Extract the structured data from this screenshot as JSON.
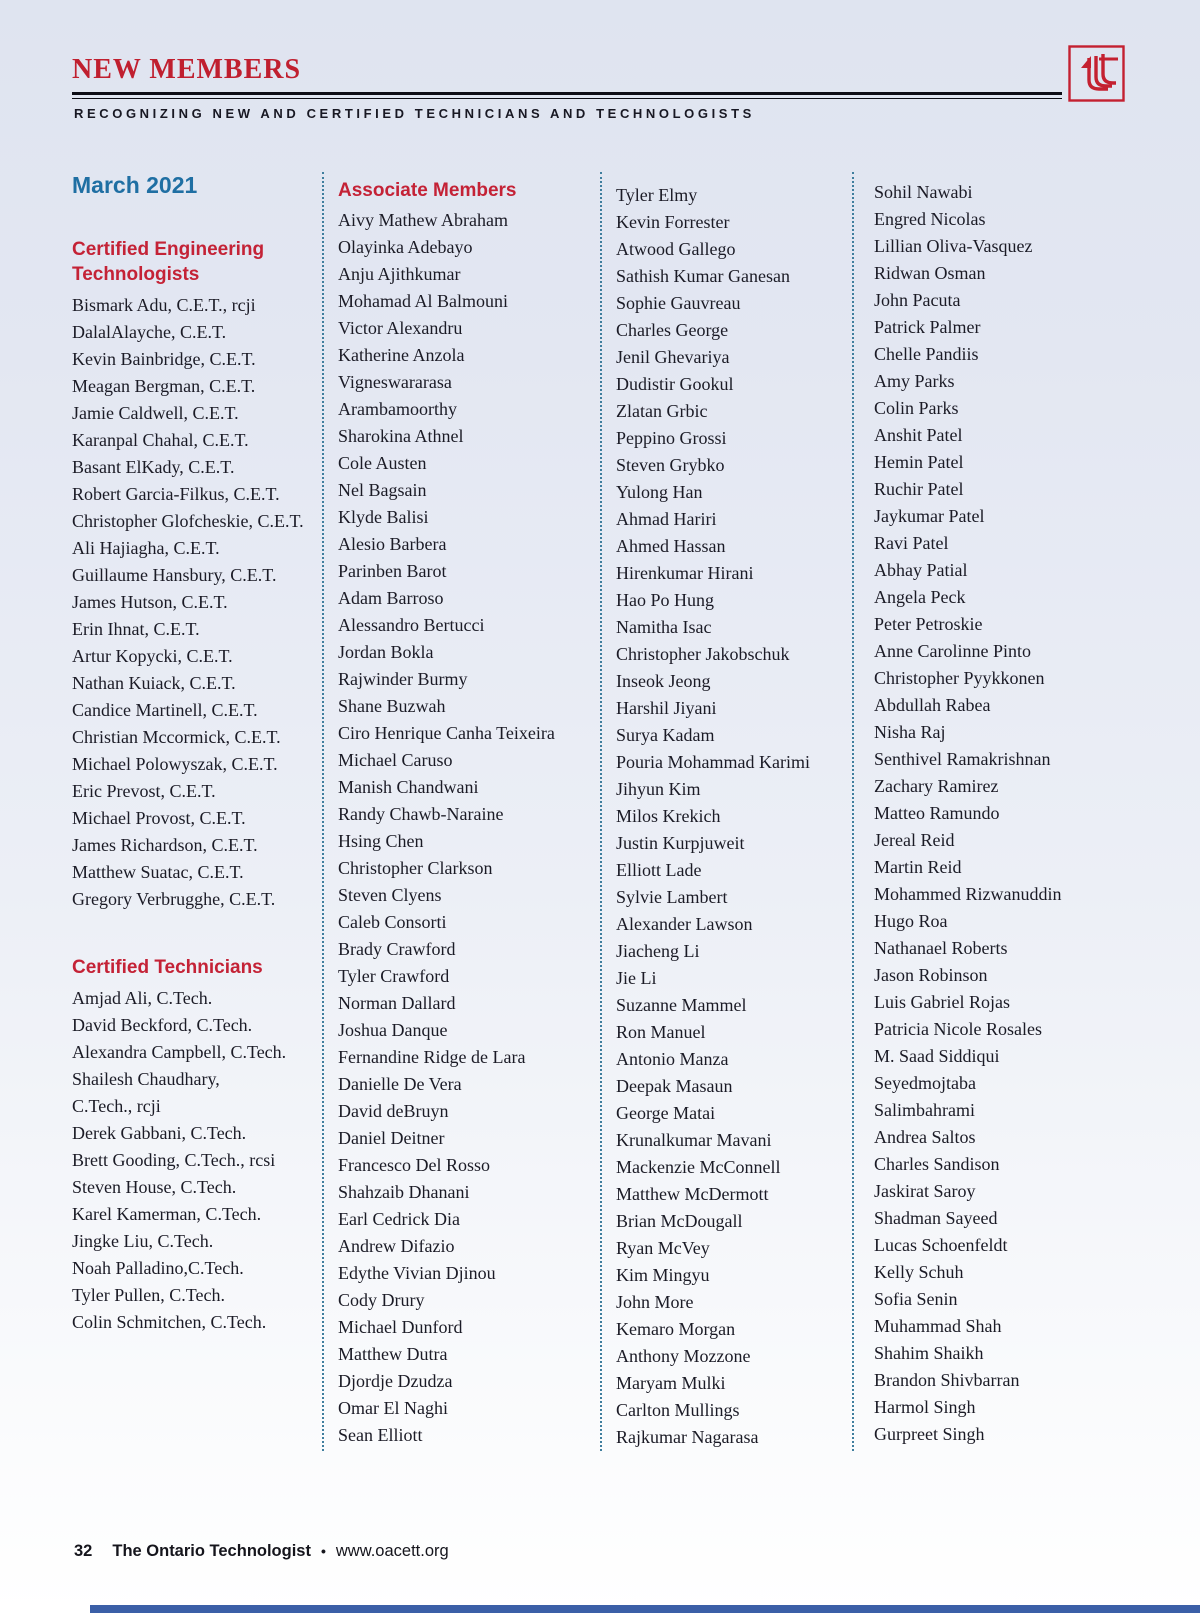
{
  "page": {
    "title": "NEW MEMBERS",
    "subtitle": "RECOGNIZING NEW AND CERTIFIED TECHNICIANS AND TECHNOLOGISTS",
    "issue_date": "March 2021"
  },
  "colors": {
    "accent_red": "#c42236",
    "heading_blue": "#1f6fa3",
    "text_dark": "#1b1b26",
    "separator_blue": "#3f7e9e",
    "bottom_bar_blue": "#3b5fa7"
  },
  "sections": {
    "cet": {
      "heading": "Certified Engineering Technologists",
      "members": [
        "Bismark Adu, C.E.T., rcji",
        "DalalAlayche, C.E.T.",
        "Kevin Bainbridge, C.E.T.",
        "Meagan Bergman, C.E.T.",
        "Jamie Caldwell, C.E.T.",
        "Karanpal Chahal, C.E.T.",
        "Basant ElKady, C.E.T.",
        "Robert Garcia-Filkus, C.E.T.",
        "Christopher Glofcheskie, C.E.T.",
        "Ali Hajiagha, C.E.T.",
        "Guillaume Hansbury, C.E.T.",
        "James Hutson, C.E.T.",
        "Erin Ihnat, C.E.T.",
        "Artur Kopycki, C.E.T.",
        "Nathan Kuiack, C.E.T.",
        "Candice Martinell, C.E.T.",
        "Christian Mccormick, C.E.T.",
        "Michael Polowyszak, C.E.T.",
        "Eric Prevost, C.E.T.",
        "Michael Provost, C.E.T.",
        "James Richardson, C.E.T.",
        "Matthew Suatac, C.E.T.",
        "Gregory Verbrugghe, C.E.T."
      ]
    },
    "ctech": {
      "heading": "Certified Technicians",
      "members": [
        "Amjad Ali, C.Tech.",
        "David Beckford, C.Tech.",
        "Alexandra Campbell, C.Tech.",
        "Shailesh Chaudhary,",
        "C.Tech., rcji",
        "Derek Gabbani, C.Tech.",
        "Brett Gooding, C.Tech., rcsi",
        "Steven House, C.Tech.",
        "Karel Kamerman, C.Tech.",
        "Jingke Liu, C.Tech.",
        "Noah Palladino,C.Tech.",
        "Tyler Pullen, C.Tech.",
        "Colin Schmitchen, C.Tech."
      ]
    },
    "associate": {
      "heading": "Associate Members",
      "col2": [
        "Aivy Mathew Abraham",
        "Olayinka Adebayo",
        "Anju Ajithkumar",
        "Mohamad Al Balmouni",
        "Victor Alexandru",
        "Katherine Anzola",
        "Vigneswararasa",
        "Arambamoorthy",
        "Sharokina Athnel",
        "Cole Austen",
        "Nel Bagsain",
        "Klyde Balisi",
        "Alesio Barbera",
        "Parinben Barot",
        "Adam Barroso",
        "Alessandro Bertucci",
        "Jordan Bokla",
        "Rajwinder Burmy",
        "Shane Buzwah",
        "Ciro Henrique Canha Teixeira",
        "Michael Caruso",
        "Manish Chandwani",
        "Randy Chawb-Naraine",
        "Hsing Chen",
        "Christopher Clarkson",
        "Steven Clyens",
        "Caleb Consorti",
        "Brady Crawford",
        "Tyler Crawford",
        "Norman Dallard",
        "Joshua Danque",
        "Fernandine Ridge de Lara",
        "Danielle De Vera",
        "David deBruyn",
        "Daniel Deitner",
        "Francesco Del Rosso",
        "Shahzaib Dhanani",
        "Earl Cedrick Dia",
        "Andrew Difazio",
        "Edythe Vivian Djinou",
        "Cody Drury",
        "Michael Dunford",
        "Matthew Dutra",
        "Djordje Dzudza",
        "Omar El Naghi",
        "Sean Elliott"
      ],
      "col3": [
        "Tyler Elmy",
        "Kevin Forrester",
        "Atwood Gallego",
        "Sathish Kumar Ganesan",
        "Sophie Gauvreau",
        "Charles George",
        "Jenil Ghevariya",
        "Dudistir Gookul",
        "Zlatan Grbic",
        "Peppino Grossi",
        "Steven Grybko",
        "Yulong Han",
        "Ahmad Hariri",
        "Ahmed Hassan",
        "Hirenkumar Hirani",
        "Hao Po Hung",
        "Namitha Isac",
        "Christopher Jakobschuk",
        "Inseok Jeong",
        "Harshil Jiyani",
        "Surya Kadam",
        "Pouria Mohammad Karimi",
        "Jihyun Kim",
        "Milos Krekich",
        "Justin Kurpjuweit",
        "Elliott Lade",
        "Sylvie Lambert",
        "Alexander Lawson",
        "Jiacheng Li",
        "Jie Li",
        "Suzanne Mammel",
        "Ron Manuel",
        "Antonio Manza",
        "Deepak Masaun",
        "George Matai",
        "Krunalkumar Mavani",
        "Mackenzie McConnell",
        "Matthew McDermott",
        "Brian McDougall",
        "Ryan McVey",
        "Kim Mingyu",
        "John More",
        "Kemaro Morgan",
        "Anthony Mozzone",
        "Maryam Mulki",
        "Carlton Mullings",
        "Rajkumar Nagarasa"
      ],
      "col4": [
        "Sohil Nawabi",
        "Engred Nicolas",
        "Lillian Oliva-Vasquez",
        "Ridwan Osman",
        "John Pacuta",
        "Patrick Palmer",
        "Chelle Pandiis",
        "Amy Parks",
        "Colin Parks",
        "Anshit Patel",
        "Hemin Patel",
        "Ruchir Patel",
        "Jaykumar Patel",
        "Ravi Patel",
        "Abhay Patial",
        "Angela Peck",
        "Peter Petroskie",
        "Anne Carolinne Pinto",
        "Christopher Pyykkonen",
        "Abdullah Rabea",
        "Nisha Raj",
        "Senthivel Ramakrishnan",
        "Zachary Ramirez",
        "Matteo Ramundo",
        "Jereal Reid",
        "Martin Reid",
        "Mohammed Rizwanuddin",
        "Hugo Roa",
        "Nathanael Roberts",
        "Jason Robinson",
        "Luis Gabriel Rojas",
        "Patricia Nicole Rosales",
        "M. Saad Siddiqui",
        "Seyedmojtaba",
        "Salimbahrami",
        "Andrea Saltos",
        "Charles Sandison",
        "Jaskirat Saroy",
        "Shadman Sayeed",
        "Lucas Schoenfeldt",
        "Kelly Schuh",
        "Sofia Senin",
        "Muhammad Shah",
        "Shahim Shaikh",
        "Brandon Shivbarran",
        "Harmol Singh",
        "Gurpreet Singh"
      ]
    }
  },
  "footer": {
    "page_number": "32",
    "publication": "The Ontario Technologist",
    "separator": "•",
    "website": "www.oacett.org"
  }
}
